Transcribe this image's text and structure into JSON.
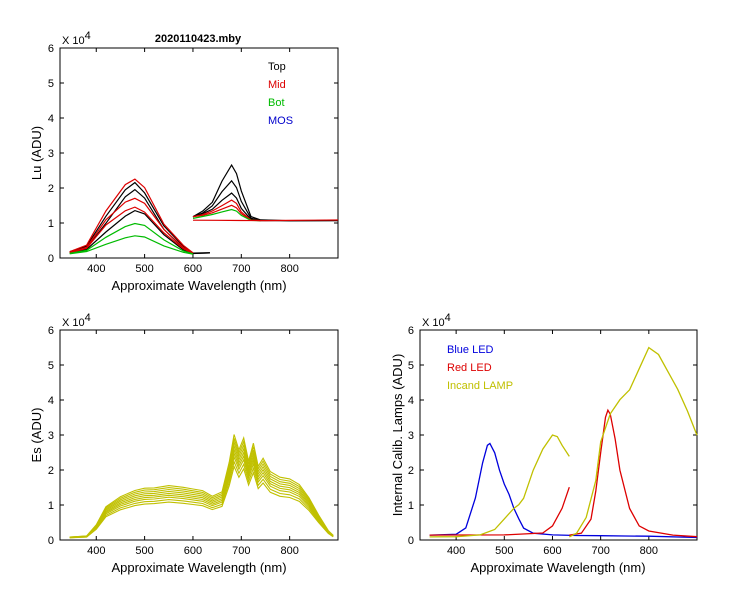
{
  "window": {
    "title": "2020110423.mby"
  },
  "chart_data": [
    {
      "id": "lu",
      "type": "line",
      "title": "2020110423.mby",
      "xlabel": "Approximate Wavelength (nm)",
      "ylabel": "Lu (ADU)",
      "xlim": [
        325,
        900
      ],
      "ylim": [
        0,
        60000
      ],
      "xticks": [
        400,
        500,
        600,
        700,
        800
      ],
      "xtick_labels": [
        "400",
        "500",
        "600",
        "700",
        "800"
      ],
      "yticks": [
        0,
        10000,
        20000,
        30000,
        40000,
        50000,
        60000
      ],
      "ytick_labels": [
        "0",
        "1",
        "2",
        "3",
        "4",
        "5",
        "6"
      ],
      "y_exponent_label": "X 10",
      "y_exponent_power": "4",
      "legend": [
        "Top",
        "Mid",
        "Bot",
        "MOS"
      ],
      "legend_position": "top-right",
      "series": [
        {
          "name": "Top",
          "color": "#000000",
          "x": [
            345,
            380,
            420,
            460,
            480,
            500,
            540,
            580,
            600,
            635
          ],
          "y": [
            2000,
            3500,
            12000,
            19500,
            21500,
            18500,
            9000,
            3500,
            1500,
            1500
          ]
        },
        {
          "name": "Top",
          "color": "#000000",
          "x": [
            345,
            380,
            420,
            460,
            480,
            500,
            540,
            580,
            600,
            635
          ],
          "y": [
            1800,
            3000,
            10000,
            17500,
            19500,
            17000,
            8000,
            3000,
            1500,
            1500
          ]
        },
        {
          "name": "Top",
          "color": "#000000",
          "x": [
            345,
            380,
            420,
            460,
            480,
            500,
            540,
            580,
            600,
            635
          ],
          "y": [
            1600,
            2600,
            7500,
            12000,
            13500,
            12500,
            6500,
            2500,
            1400,
            1500
          ]
        },
        {
          "name": "Mid",
          "color": "#dd0000",
          "x": [
            345,
            380,
            420,
            460,
            480,
            500,
            540,
            580,
            600
          ],
          "y": [
            2000,
            3800,
            13500,
            21000,
            22500,
            20000,
            9500,
            3800,
            1600
          ]
        },
        {
          "name": "Mid",
          "color": "#dd0000",
          "x": [
            345,
            380,
            420,
            460,
            480,
            500,
            540,
            580,
            600
          ],
          "y": [
            1800,
            3200,
            11000,
            16000,
            17000,
            15500,
            8000,
            3200,
            1500
          ]
        },
        {
          "name": "Mid",
          "color": "#dd0000",
          "x": [
            345,
            380,
            420,
            460,
            480,
            500,
            540,
            580,
            600
          ],
          "y": [
            1700,
            2900,
            9500,
            13500,
            14500,
            13000,
            7000,
            2800,
            1400
          ]
        },
        {
          "name": "Bot",
          "color": "#00bb00",
          "x": [
            345,
            380,
            420,
            460,
            480,
            500,
            540,
            580,
            600
          ],
          "y": [
            1500,
            2300,
            6000,
            9000,
            9800,
            9200,
            5000,
            2200,
            1300
          ]
        },
        {
          "name": "Bot",
          "color": "#00bb00",
          "x": [
            345,
            380,
            420,
            460,
            480,
            500,
            540,
            580,
            600
          ],
          "y": [
            1400,
            2000,
            4000,
            5800,
            6300,
            5900,
            3300,
            1800,
            1200
          ]
        },
        {
          "name": "Top",
          "color": "#000000",
          "x": [
            600,
            620,
            640,
            660,
            680,
            690,
            700,
            720,
            740,
            800,
            900
          ],
          "y": [
            12000,
            13500,
            16000,
            22000,
            26500,
            24000,
            19000,
            12000,
            11000,
            10700,
            10700
          ]
        },
        {
          "name": "Top",
          "color": "#000000",
          "x": [
            600,
            620,
            640,
            660,
            680,
            690,
            700,
            720,
            740,
            800,
            900
          ],
          "y": [
            12000,
            13000,
            15000,
            19000,
            22000,
            20000,
            16000,
            11500,
            10900,
            10700,
            10700
          ]
        },
        {
          "name": "Top",
          "color": "#000000",
          "x": [
            600,
            620,
            640,
            660,
            680,
            690,
            700,
            720,
            740,
            800,
            900
          ],
          "y": [
            12000,
            12800,
            14000,
            16500,
            18500,
            17000,
            14000,
            11200,
            10800,
            10700,
            10700
          ]
        },
        {
          "name": "Mid",
          "color": "#dd0000",
          "x": [
            600,
            620,
            640,
            660,
            680,
            690,
            700,
            720,
            740
          ],
          "y": [
            12000,
            12500,
            13500,
            15000,
            16500,
            15500,
            13000,
            11000,
            10800
          ]
        },
        {
          "name": "Mid",
          "color": "#dd0000",
          "x": [
            600,
            620,
            640,
            660,
            680,
            690,
            700,
            720,
            740
          ],
          "y": [
            12000,
            12300,
            13000,
            14000,
            15000,
            14200,
            12500,
            11000,
            10800
          ]
        },
        {
          "name": "Bot",
          "color": "#00bb00",
          "x": [
            600,
            620,
            640,
            660,
            680,
            690,
            700,
            720,
            740
          ],
          "y": [
            11500,
            12000,
            12500,
            13200,
            13800,
            13300,
            12000,
            10900,
            10800
          ]
        },
        {
          "name": "Mid",
          "color": "#dd0000",
          "x": [
            600,
            650,
            700,
            750,
            800,
            850,
            900
          ],
          "y": [
            11000,
            10900,
            10800,
            10700,
            10700,
            10700,
            10700
          ]
        }
      ]
    },
    {
      "id": "es",
      "type": "line",
      "xlabel": "Approximate Wavelength (nm)",
      "ylabel": "Es  (ADU)",
      "xlim": [
        325,
        900
      ],
      "ylim": [
        0,
        60000
      ],
      "xticks": [
        400,
        500,
        600,
        700,
        800
      ],
      "xtick_labels": [
        "400",
        "500",
        "600",
        "700",
        "800"
      ],
      "yticks": [
        0,
        10000,
        20000,
        30000,
        40000,
        50000,
        60000
      ],
      "ytick_labels": [
        "0",
        "1",
        "2",
        "3",
        "4",
        "5",
        "6"
      ],
      "y_exponent_label": "X 10",
      "y_exponent_power": "4",
      "color": "#c0c000",
      "base_shape": {
        "x": [
          345,
          380,
          400,
          420,
          450,
          480,
          500,
          520,
          550,
          580,
          600,
          620,
          640,
          660,
          675,
          685,
          695,
          705,
          715,
          725,
          735,
          745,
          760,
          780,
          800,
          820,
          840,
          860,
          880,
          890
        ],
        "y": [
          1000,
          1200,
          4000,
          8500,
          11000,
          12500,
          13000,
          13500,
          14000,
          13500,
          13000,
          12500,
          11000,
          12500,
          20000,
          27000,
          23000,
          26000,
          20000,
          24500,
          19000,
          21000,
          17500,
          16000,
          15500,
          14000,
          11000,
          6500,
          2500,
          1200
        ]
      },
      "scales": [
        0.78,
        0.83,
        0.88,
        0.92,
        0.96,
        1.0,
        1.04,
        1.08,
        1.12
      ]
    },
    {
      "id": "calib",
      "type": "line",
      "xlabel": "Approximate Wavelength (nm)",
      "ylabel": "Internal Calib. Lamps  (ADU)",
      "xlim": [
        325,
        900
      ],
      "ylim": [
        0,
        60000
      ],
      "xticks": [
        400,
        500,
        600,
        700,
        800
      ],
      "xtick_labels": [
        "400",
        "500",
        "600",
        "700",
        "800"
      ],
      "yticks": [
        0,
        10000,
        20000,
        30000,
        40000,
        50000,
        60000
      ],
      "ytick_labels": [
        "0",
        "1",
        "2",
        "3",
        "4",
        "5",
        "6"
      ],
      "y_exponent_label": "X 10",
      "y_exponent_power": "4",
      "legend": [
        "Blue LED",
        "Red LED",
        "Incand LAMP"
      ],
      "legend_position": "top-left",
      "series": [
        {
          "name": "Blue LED",
          "color": "#0000dd",
          "x": [
            345,
            400,
            420,
            440,
            455,
            465,
            470,
            480,
            490,
            500,
            510,
            520,
            530,
            540,
            560,
            600,
            650,
            700,
            750,
            800,
            900
          ],
          "y": [
            1500,
            1700,
            3500,
            12000,
            22000,
            27000,
            27500,
            25000,
            20000,
            16000,
            13000,
            9000,
            6000,
            3500,
            2000,
            1500,
            1300,
            1200,
            1100,
            1000,
            800
          ]
        },
        {
          "name": "Red LED",
          "color": "#dd0000",
          "x": [
            345,
            400,
            500,
            580,
            600,
            620,
            635
          ],
          "y": [
            1500,
            1500,
            1500,
            2000,
            4000,
            9000,
            15000
          ]
        },
        {
          "name": "Red LED",
          "color": "#dd0000",
          "x": [
            635,
            660,
            680,
            690,
            700,
            710,
            715,
            720,
            730,
            740,
            760,
            780,
            800,
            850,
            900
          ],
          "y": [
            1500,
            2000,
            6000,
            14000,
            25000,
            35000,
            37000,
            36000,
            29000,
            20000,
            9000,
            4000,
            2500,
            1500,
            1000
          ]
        },
        {
          "name": "Incand LAMP",
          "color": "#c0c000",
          "x": [
            345,
            400,
            450,
            480,
            500,
            520,
            530,
            540,
            560,
            580,
            600,
            610,
            620,
            635
          ],
          "y": [
            1000,
            1000,
            1500,
            3000,
            6000,
            9000,
            10000,
            12000,
            20000,
            26000,
            30000,
            29500,
            27000,
            24000
          ]
        },
        {
          "name": "Incand LAMP",
          "color": "#c0c000",
          "x": [
            635,
            650,
            670,
            690,
            700,
            720,
            740,
            760,
            780,
            800,
            820,
            840,
            860,
            880,
            900
          ],
          "y": [
            1000,
            2000,
            6500,
            17000,
            28000,
            36000,
            40000,
            43000,
            49000,
            55000,
            53000,
            48000,
            43000,
            37000,
            30000
          ]
        }
      ]
    }
  ]
}
